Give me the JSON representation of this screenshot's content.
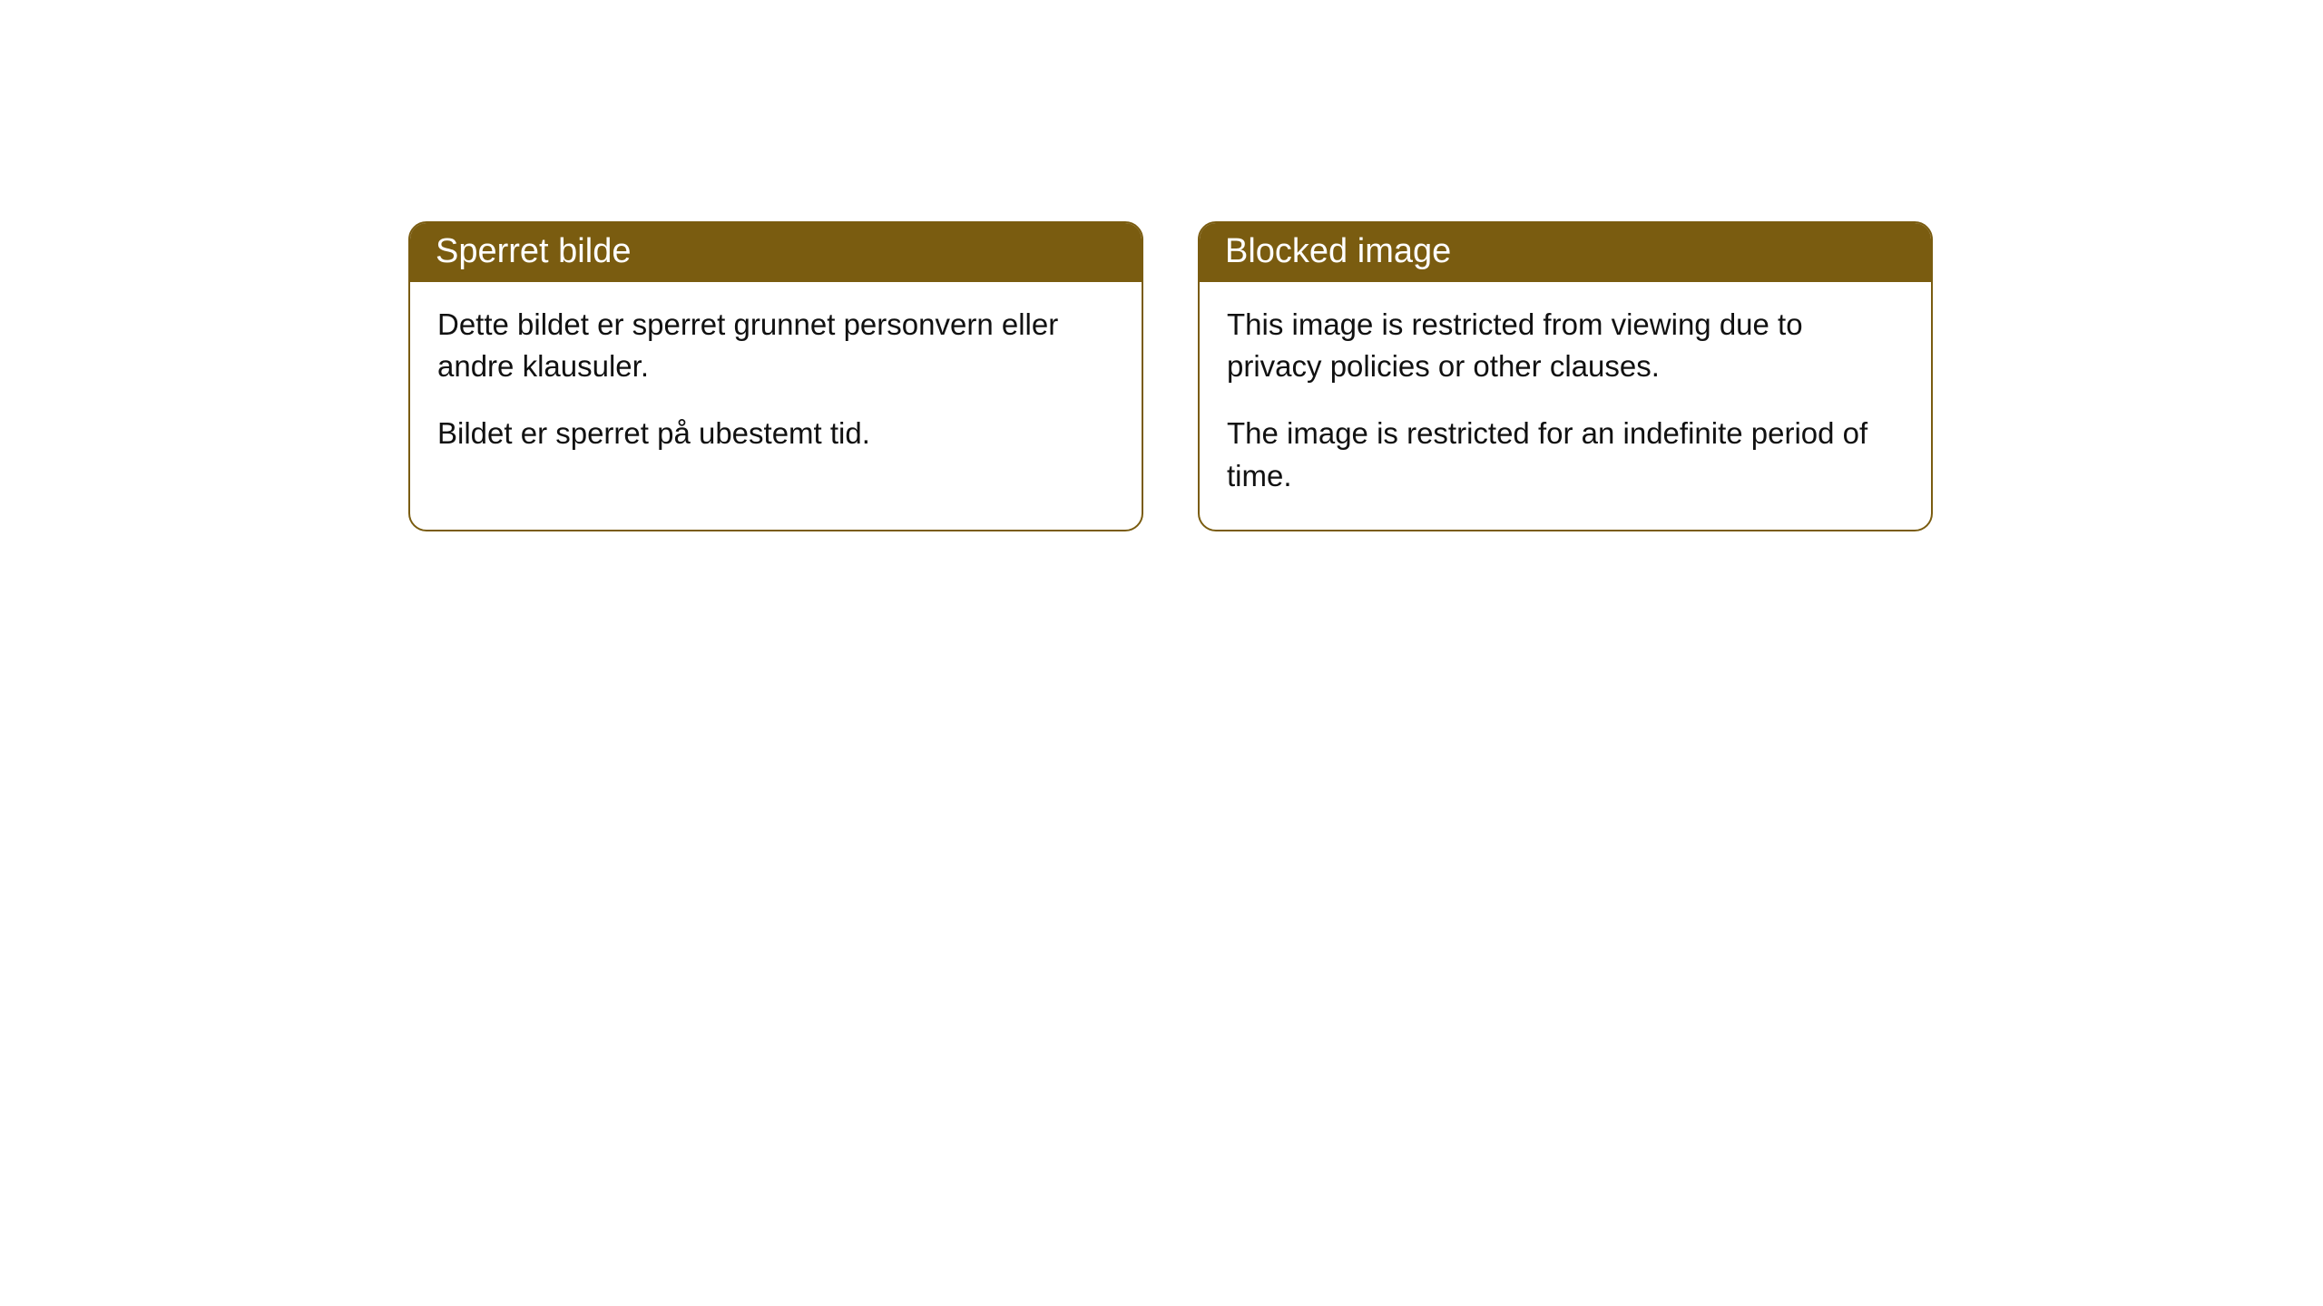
{
  "cards": [
    {
      "title": "Sperret bilde",
      "paragraph1": "Dette bildet er sperret grunnet personvern eller andre klausuler.",
      "paragraph2": "Bildet er sperret på ubestemt tid."
    },
    {
      "title": "Blocked image",
      "paragraph1": "This image is restricted from viewing due to privacy policies or other clauses.",
      "paragraph2": "The image is restricted for an indefinite period of time."
    }
  ],
  "styling": {
    "header_background_color": "#7a5c10",
    "header_text_color": "#ffffff",
    "card_border_color": "#7a5c10",
    "card_background_color": "#ffffff",
    "body_text_color": "#111111",
    "page_background_color": "#ffffff",
    "header_font_size": 38,
    "body_font_size": 33,
    "border_radius": 20
  }
}
